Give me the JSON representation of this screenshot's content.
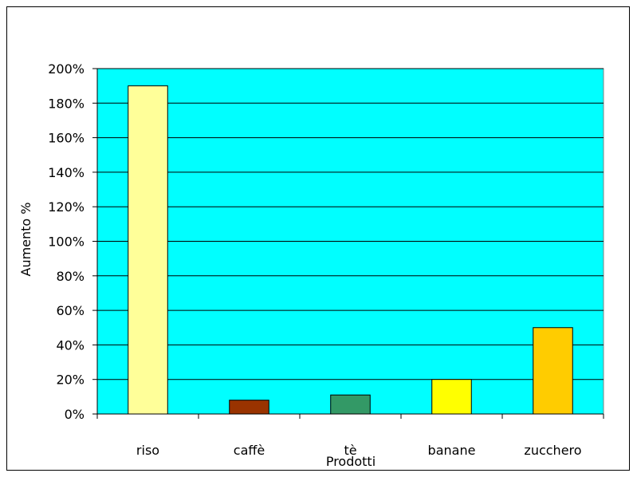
{
  "chart_data": {
    "type": "bar",
    "title": "",
    "xlabel": "Prodotti",
    "ylabel": "Aumento %",
    "categories": [
      "riso",
      "caffè",
      "tè",
      "banane",
      "zucchero"
    ],
    "values": [
      190,
      8,
      11,
      20,
      50
    ],
    "value_unit": "%",
    "ylim": [
      0,
      200
    ],
    "yticks": [
      0,
      20,
      40,
      60,
      80,
      100,
      120,
      140,
      160,
      180,
      200
    ],
    "ytick_labels": [
      "0%",
      "20%",
      "40%",
      "60%",
      "80%",
      "100%",
      "120%",
      "140%",
      "160%",
      "180%",
      "200%"
    ],
    "grid": true,
    "legend": "none",
    "colors": {
      "plot_background": "#00FFFF",
      "gridline": "#000000",
      "bars": [
        "#FFFF99",
        "#993300",
        "#339966",
        "#FFFF00",
        "#FFCC00"
      ]
    }
  }
}
